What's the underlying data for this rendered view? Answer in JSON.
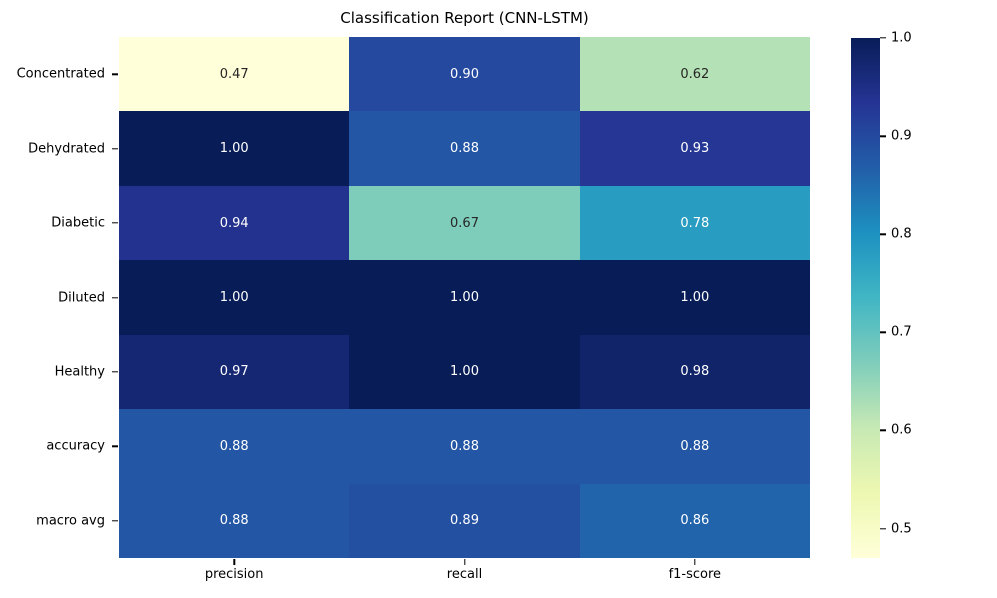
{
  "chart_data": {
    "type": "heatmap",
    "title": "Classification Report (CNN-LSTM)",
    "rows": [
      "Concentrated",
      "Dehydrated",
      "Diabetic",
      "Diluted",
      "Healthy",
      "accuracy",
      "macro avg"
    ],
    "columns": [
      "precision",
      "recall",
      "f1-score"
    ],
    "values": [
      [
        0.47,
        0.9,
        0.62
      ],
      [
        1.0,
        0.88,
        0.93
      ],
      [
        0.94,
        0.67,
        0.78
      ],
      [
        1.0,
        1.0,
        1.0
      ],
      [
        0.97,
        1.0,
        0.98
      ],
      [
        0.88,
        0.88,
        0.88
      ],
      [
        0.88,
        0.89,
        0.86
      ]
    ],
    "value_labels": [
      [
        "0.47",
        "0.90",
        "0.62"
      ],
      [
        "1.00",
        "0.88",
        "0.93"
      ],
      [
        "0.94",
        "0.67",
        "0.78"
      ],
      [
        "1.00",
        "1.00",
        "1.00"
      ],
      [
        "0.97",
        "1.00",
        "0.98"
      ],
      [
        "0.88",
        "0.88",
        "0.88"
      ],
      [
        "0.88",
        "0.89",
        "0.86"
      ]
    ],
    "cell_colors": [
      [
        "#ffffd9",
        "#24499e",
        "#b4e2b6"
      ],
      [
        "#081d58",
        "#2356a4",
        "#253695"
      ],
      [
        "#22328e",
        "#7ecdbb",
        "#299dc1"
      ],
      [
        "#081d58",
        "#081d58",
        "#081d58"
      ],
      [
        "#152773",
        "#081d58",
        "#11246a"
      ],
      [
        "#2356a4",
        "#2356a4",
        "#2356a4"
      ],
      [
        "#2356a4",
        "#2350a1",
        "#2164ab"
      ]
    ],
    "text_colors": [
      [
        "#262626",
        "#ffffff",
        "#262626"
      ],
      [
        "#ffffff",
        "#ffffff",
        "#ffffff"
      ],
      [
        "#ffffff",
        "#262626",
        "#ffffff"
      ],
      [
        "#ffffff",
        "#ffffff",
        "#ffffff"
      ],
      [
        "#ffffff",
        "#ffffff",
        "#ffffff"
      ],
      [
        "#ffffff",
        "#ffffff",
        "#ffffff"
      ],
      [
        "#ffffff",
        "#ffffff",
        "#ffffff"
      ]
    ],
    "colormap": "YlGnBu",
    "vmin": 0.47,
    "vmax": 1.0,
    "grid": false,
    "legend_position": "right-colorbar",
    "colorbar": {
      "tick_labels": [
        "1.0",
        "0.9",
        "0.8",
        "0.7",
        "0.6",
        "0.5"
      ],
      "tick_values": [
        1.0,
        0.9,
        0.8,
        0.7,
        0.6,
        0.5
      ],
      "gradient_stops": [
        {
          "pos": 0.0,
          "color": "#081d58"
        },
        {
          "pos": 12.5,
          "color": "#253494"
        },
        {
          "pos": 25.0,
          "color": "#225ea8"
        },
        {
          "pos": 37.5,
          "color": "#1d91c0"
        },
        {
          "pos": 50.0,
          "color": "#41b6c4"
        },
        {
          "pos": 62.5,
          "color": "#7fcdbb"
        },
        {
          "pos": 75.0,
          "color": "#c7e9b4"
        },
        {
          "pos": 87.5,
          "color": "#edf8b1"
        },
        {
          "pos": 100.0,
          "color": "#ffffd9"
        }
      ]
    }
  }
}
